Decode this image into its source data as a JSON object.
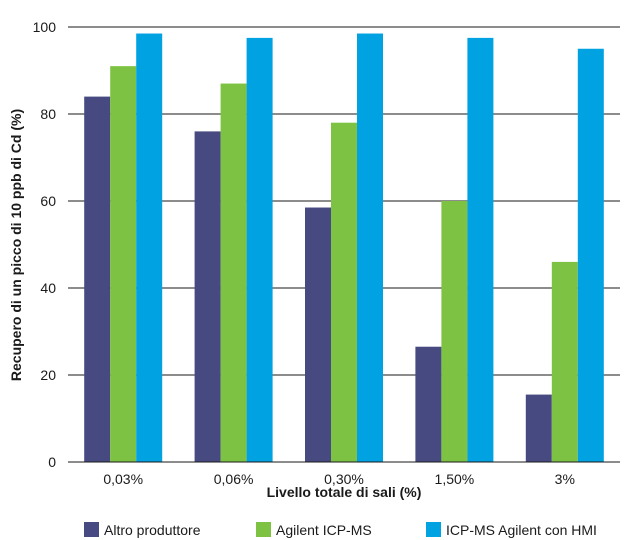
{
  "chart_data": {
    "type": "bar",
    "title": "",
    "xlabel": "Livello totale di sali (%)",
    "ylabel": "Recupero di un picco di 10 ppb di Cd (%)",
    "categories": [
      "0,03%",
      "0,06%",
      "0,30%",
      "1,50%",
      "3%"
    ],
    "ylim": [
      0,
      100
    ],
    "yticks": [
      "0",
      "20",
      "40",
      "60",
      "80",
      "100"
    ],
    "grid": "horizontal",
    "legend_position": "bottom",
    "series": [
      {
        "name": "Altro produttore",
        "color": "#464a80",
        "values": [
          84,
          76,
          58.5,
          26.5,
          15.5
        ]
      },
      {
        "name": "Agilent ICP-MS",
        "color": "#7dc242",
        "values": [
          91,
          87,
          78,
          60,
          46
        ]
      },
      {
        "name": "ICP-MS Agilent con HMI",
        "color": "#00a2e1",
        "values": [
          98.5,
          97.5,
          98.5,
          97.5,
          95
        ]
      }
    ]
  }
}
